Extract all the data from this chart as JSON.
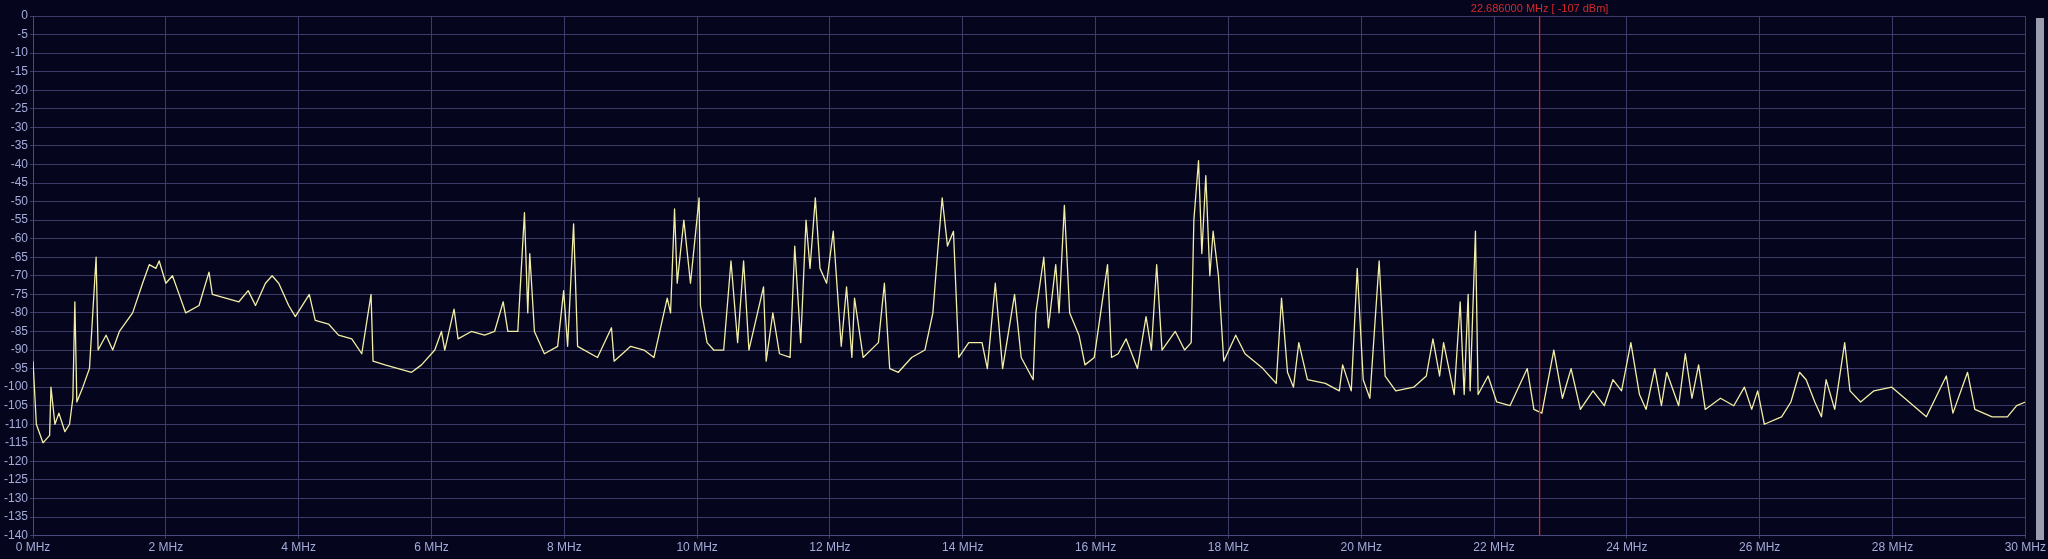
{
  "chart_data": {
    "type": "line",
    "x": [
      0,
      0.05,
      0.15,
      0.25,
      0.27,
      0.33,
      0.39,
      0.48,
      0.55,
      0.6,
      0.63,
      0.66,
      0.75,
      0.85,
      0.95,
      0.98,
      1.1,
      1.2,
      1.3,
      1.5,
      1.65,
      1.75,
      1.85,
      1.9,
      2.0,
      2.1,
      2.2,
      2.3,
      2.5,
      2.65,
      2.7,
      2.9,
      3.1,
      3.24,
      3.35,
      3.5,
      3.6,
      3.7,
      3.85,
      3.95,
      4.16,
      4.25,
      4.45,
      4.6,
      4.8,
      4.95,
      5.09,
      5.12,
      5.3,
      5.5,
      5.7,
      5.85,
      6.05,
      6.15,
      6.2,
      6.34,
      6.4,
      6.6,
      6.8,
      6.95,
      7.08,
      7.15,
      7.3,
      7.4,
      7.45,
      7.48,
      7.55,
      7.7,
      7.9,
      7.99,
      8.05,
      8.14,
      8.2,
      8.5,
      8.71,
      8.75,
      9.0,
      9.2,
      9.35,
      9.55,
      9.6,
      9.66,
      9.7,
      9.8,
      9.9,
      10.03,
      10.05,
      10.15,
      10.25,
      10.4,
      10.51,
      10.61,
      10.7,
      10.78,
      11.0,
      11.04,
      11.14,
      11.24,
      11.4,
      11.47,
      11.56,
      11.64,
      11.7,
      11.78,
      11.85,
      11.95,
      12.05,
      12.17,
      12.25,
      12.33,
      12.37,
      12.5,
      12.73,
      12.82,
      12.9,
      13.03,
      13.23,
      13.43,
      13.55,
      13.62,
      13.69,
      13.77,
      13.86,
      13.94,
      14.09,
      14.29,
      14.37,
      14.49,
      14.6,
      14.78,
      14.88,
      15.06,
      15.1,
      15.22,
      15.29,
      15.4,
      15.45,
      15.53,
      15.61,
      15.75,
      15.84,
      15.98,
      16.18,
      16.24,
      16.34,
      16.46,
      16.63,
      16.76,
      16.84,
      16.92,
      17.0,
      17.2,
      17.34,
      17.44,
      17.48,
      17.55,
      17.6,
      17.66,
      17.72,
      17.77,
      17.85,
      17.93,
      18.11,
      18.25,
      18.52,
      18.72,
      18.8,
      18.89,
      18.98,
      19.06,
      19.19,
      19.46,
      19.67,
      19.72,
      19.85,
      19.94,
      20.03,
      20.13,
      20.27,
      20.36,
      20.52,
      20.79,
      20.98,
      21.08,
      21.18,
      21.24,
      21.4,
      21.49,
      21.55,
      21.61,
      21.64,
      21.72,
      21.76,
      21.91,
      22.04,
      22.24,
      22.5,
      22.6,
      22.72,
      22.9,
      23.03,
      23.16,
      23.3,
      23.49,
      23.66,
      23.79,
      23.92,
      24.06,
      24.19,
      24.29,
      24.42,
      24.52,
      24.6,
      24.78,
      24.88,
      24.98,
      25.08,
      25.18,
      25.41,
      25.61,
      25.77,
      25.88,
      25.97,
      26.07,
      26.33,
      26.47,
      26.6,
      26.7,
      26.83,
      26.93,
      27.0,
      27.13,
      27.28,
      27.36,
      27.52,
      27.72,
      27.99,
      28.25,
      28.51,
      28.81,
      28.91,
      29.13,
      29.24,
      29.5,
      29.73,
      29.87,
      30.0
    ],
    "series": [
      {
        "color": "#f2eea6",
        "values": [
          -93,
          -110,
          -115,
          -113,
          -100,
          -110,
          -107,
          -112,
          -110,
          -103,
          -77,
          -104,
          -100,
          -95,
          -65,
          -90,
          -86,
          -90,
          -85,
          -80,
          -72,
          -67,
          -68,
          -66,
          -72,
          -70,
          -75,
          -80,
          -78,
          -69,
          -75,
          -76,
          -77,
          -74,
          -78,
          -72,
          -70,
          -72,
          -78,
          -81,
          -75,
          -82,
          -83,
          -86,
          -87,
          -91,
          -75,
          -93,
          -94,
          -95,
          -96,
          -94,
          -90,
          -85,
          -90,
          -79,
          -87,
          -85,
          -86,
          -85,
          -77,
          -85,
          -85,
          -53,
          -80,
          -64,
          -85,
          -91,
          -89,
          -74,
          -89,
          -56,
          -89,
          -92,
          -84,
          -93,
          -89,
          -90,
          -92,
          -76,
          -80,
          -52,
          -72,
          -55,
          -72,
          -49,
          -78,
          -88,
          -90,
          -90,
          -66,
          -88,
          -66,
          -90,
          -73,
          -93,
          -80,
          -91,
          -92,
          -62,
          -88,
          -55,
          -68,
          -49,
          -68,
          -72,
          -58,
          -89,
          -73,
          -92,
          -76,
          -92,
          -88,
          -72,
          -95,
          -96,
          -92,
          -90,
          -80,
          -64,
          -49,
          -62,
          -58,
          -92,
          -88,
          -88,
          -95,
          -72,
          -95,
          -75,
          -92,
          -98,
          -80,
          -65,
          -84,
          -67,
          -80,
          -51,
          -80,
          -86,
          -94,
          -92,
          -67,
          -92,
          -91,
          -87,
          -95,
          -81,
          -90,
          -67,
          -90,
          -85,
          -90,
          -88,
          -55,
          -39,
          -64,
          -43,
          -70,
          -58,
          -70,
          -93,
          -86,
          -91,
          -95,
          -99,
          -76,
          -96,
          -100,
          -88,
          -98,
          -99,
          -101,
          -94,
          -101,
          -68,
          -98,
          -103,
          -66,
          -97,
          -101,
          -100,
          -97,
          -87,
          -97,
          -88,
          -102,
          -77,
          -102,
          -75,
          -101,
          -58,
          -102,
          -97,
          -104,
          -105,
          -95,
          -106,
          -107,
          -90,
          -103,
          -95,
          -106,
          -101,
          -105,
          -98,
          -101,
          -88,
          -102,
          -106,
          -95,
          -105,
          -96,
          -105,
          -91,
          -103,
          -94,
          -106,
          -103,
          -105,
          -100,
          -106,
          -101,
          -110,
          -108,
          -104,
          -96,
          -98,
          -104,
          -108,
          -98,
          -106,
          -88,
          -101,
          -104,
          -101,
          -100,
          -104,
          -108,
          -97,
          -107,
          -96,
          -106,
          -108,
          -108,
          -105,
          -104
        ]
      }
    ],
    "xlim": [
      0,
      30
    ],
    "xticks": [
      {
        "value": 0,
        "label": "0 MHz"
      },
      {
        "value": 2,
        "label": "2 MHz"
      },
      {
        "value": 4,
        "label": "4 MHz"
      },
      {
        "value": 6,
        "label": "6 MHz"
      },
      {
        "value": 8,
        "label": "8 MHz"
      },
      {
        "value": 10,
        "label": "10 MHz"
      },
      {
        "value": 12,
        "label": "12 MHz"
      },
      {
        "value": 14,
        "label": "14 MHz"
      },
      {
        "value": 16,
        "label": "16 MHz"
      },
      {
        "value": 18,
        "label": "18 MHz"
      },
      {
        "value": 20,
        "label": "20 MHz"
      },
      {
        "value": 22,
        "label": "22 MHz"
      },
      {
        "value": 24,
        "label": "24 MHz"
      },
      {
        "value": 26,
        "label": "26 MHz"
      },
      {
        "value": 28,
        "label": "28 MHz"
      },
      {
        "value": 30,
        "label": "30 MHz"
      }
    ],
    "ylim": [
      -140,
      0
    ],
    "yticks": [
      0,
      -5,
      -10,
      -15,
      -20,
      -25,
      -30,
      -35,
      -40,
      -45,
      -50,
      -55,
      -60,
      -65,
      -70,
      -75,
      -80,
      -85,
      -90,
      -95,
      -100,
      -105,
      -110,
      -115,
      -120,
      -125,
      -130,
      -135,
      -140
    ],
    "ref_lines": [
      {
        "axis": "x",
        "value": 22.686,
        "label": "22.686000 MHz [ -107 dBm]",
        "color": "#d42a2a"
      }
    ],
    "grid": true,
    "legend": false,
    "marker": "none",
    "line_style": "solid"
  }
}
